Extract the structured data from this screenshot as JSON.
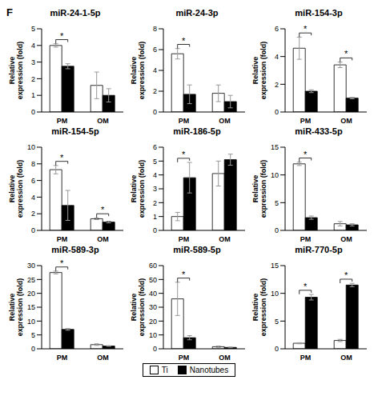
{
  "panel_label": "F",
  "chart_data": [
    {
      "type": "bar",
      "title": "miR-24-1-5p",
      "y_label": "Relative expression (fold)",
      "categories": [
        "PM",
        "OM"
      ],
      "series": [
        {
          "name": "Ti",
          "color": "#ffffff",
          "values": [
            4.0,
            1.6
          ],
          "errors": [
            0.1,
            0.8
          ]
        },
        {
          "name": "Nanotubes",
          "color": "#000000",
          "values": [
            2.75,
            1.0
          ],
          "errors": [
            0.15,
            0.4
          ]
        }
      ],
      "ylim": [
        0,
        5
      ],
      "yticks": [
        0,
        1,
        2,
        3,
        4,
        5
      ],
      "annotations": [
        {
          "category": "PM",
          "text": "*"
        }
      ]
    },
    {
      "type": "bar",
      "title": "miR-24-3p",
      "y_label": "Relative expression (fold)",
      "categories": [
        "PM",
        "OM"
      ],
      "series": [
        {
          "name": "Ti",
          "color": "#ffffff",
          "values": [
            5.6,
            1.8
          ],
          "errors": [
            0.5,
            0.8
          ]
        },
        {
          "name": "Nanotubes",
          "color": "#000000",
          "values": [
            1.7,
            1.0
          ],
          "errors": [
            0.9,
            0.6
          ]
        }
      ],
      "ylim": [
        0,
        8
      ],
      "yticks": [
        0,
        2,
        4,
        6,
        8
      ],
      "annotations": [
        {
          "category": "PM",
          "text": "*"
        }
      ]
    },
    {
      "type": "bar",
      "title": "miR-154-3p",
      "y_label": "Relative expression (fold)",
      "categories": [
        "PM",
        "OM"
      ],
      "series": [
        {
          "name": "Ti",
          "color": "#ffffff",
          "values": [
            4.6,
            3.4
          ],
          "errors": [
            0.8,
            0.2
          ]
        },
        {
          "name": "Nanotubes",
          "color": "#000000",
          "values": [
            1.5,
            1.0
          ],
          "errors": [
            0.1,
            0.05
          ]
        }
      ],
      "ylim": [
        0,
        6
      ],
      "yticks": [
        0,
        2,
        4,
        6
      ],
      "annotations": [
        {
          "category": "PM",
          "text": "*"
        },
        {
          "category": "OM",
          "text": "*"
        }
      ]
    },
    {
      "type": "bar",
      "title": "miR-154-5p",
      "y_label": "Relative expression (fold)",
      "categories": [
        "PM",
        "OM"
      ],
      "series": [
        {
          "name": "Ti",
          "color": "#ffffff",
          "values": [
            7.3,
            1.4
          ],
          "errors": [
            0.5,
            0.1
          ]
        },
        {
          "name": "Nanotubes",
          "color": "#000000",
          "values": [
            3.0,
            1.0
          ],
          "errors": [
            1.8,
            0.1
          ]
        }
      ],
      "ylim": [
        0,
        10
      ],
      "yticks": [
        0,
        2,
        4,
        6,
        8,
        10
      ],
      "annotations": [
        {
          "category": "PM",
          "text": "*"
        },
        {
          "category": "OM",
          "text": "*"
        }
      ]
    },
    {
      "type": "bar",
      "title": "miR-186-5p",
      "y_label": "Relative expression (fold)",
      "categories": [
        "PM",
        "OM"
      ],
      "series": [
        {
          "name": "Ti",
          "color": "#ffffff",
          "values": [
            1.0,
            4.1
          ],
          "errors": [
            0.3,
            0.9
          ]
        },
        {
          "name": "Nanotubes",
          "color": "#000000",
          "values": [
            3.8,
            5.1
          ],
          "errors": [
            1.1,
            0.4
          ]
        }
      ],
      "ylim": [
        0,
        6
      ],
      "yticks": [
        0,
        1,
        2,
        3,
        4,
        5,
        6
      ],
      "annotations": [
        {
          "category": "PM",
          "text": "*"
        }
      ]
    },
    {
      "type": "bar",
      "title": "miR-433-5p",
      "y_label": "Relative expression (fold)",
      "categories": [
        "PM",
        "OM"
      ],
      "series": [
        {
          "name": "Ti",
          "color": "#ffffff",
          "values": [
            12.0,
            1.2
          ],
          "errors": [
            0.3,
            0.4
          ]
        },
        {
          "name": "Nanotubes",
          "color": "#000000",
          "values": [
            2.3,
            1.0
          ],
          "errors": [
            0.3,
            0.2
          ]
        }
      ],
      "ylim": [
        0,
        15
      ],
      "yticks": [
        0,
        5,
        10,
        15
      ],
      "annotations": [
        {
          "category": "PM",
          "text": "*"
        }
      ]
    },
    {
      "type": "bar",
      "title": "miR-589-3p",
      "y_label": "Relative expression (fold)",
      "categories": [
        "PM",
        "OM"
      ],
      "series": [
        {
          "name": "Ti",
          "color": "#ffffff",
          "values": [
            27.5,
            1.5
          ],
          "errors": [
            0.5,
            0.3
          ]
        },
        {
          "name": "Nanotubes",
          "color": "#000000",
          "values": [
            7.0,
            1.0
          ],
          "errors": [
            0.3,
            0.1
          ]
        }
      ],
      "ylim": [
        0,
        30
      ],
      "yticks": [
        0,
        5,
        10,
        15,
        20,
        25,
        30
      ],
      "annotations": [
        {
          "category": "PM",
          "text": "*"
        }
      ]
    },
    {
      "type": "bar",
      "title": "miR-589-5p",
      "y_label": "Relative expression (fold)",
      "categories": [
        "PM",
        "OM"
      ],
      "series": [
        {
          "name": "Ti",
          "color": "#ffffff",
          "values": [
            36.0,
            1.5
          ],
          "errors": [
            12.0,
            0.5
          ]
        },
        {
          "name": "Nanotubes",
          "color": "#000000",
          "values": [
            8.0,
            1.0
          ],
          "errors": [
            1.5,
            0.3
          ]
        }
      ],
      "ylim": [
        0,
        60
      ],
      "yticks": [
        0,
        10,
        20,
        30,
        40,
        50,
        60
      ],
      "annotations": [
        {
          "category": "PM",
          "text": "*"
        }
      ]
    },
    {
      "type": "bar",
      "title": "miR-770-5p",
      "y_label": "Relative expression (fold)",
      "categories": [
        "PM",
        "OM"
      ],
      "series": [
        {
          "name": "Ti",
          "color": "#ffffff",
          "values": [
            1.0,
            1.5
          ],
          "errors": [
            0.1,
            0.2
          ]
        },
        {
          "name": "Nanotubes",
          "color": "#000000",
          "values": [
            9.3,
            11.5
          ],
          "errors": [
            0.5,
            0.3
          ]
        }
      ],
      "ylim": [
        0,
        15
      ],
      "yticks": [
        0,
        5,
        10,
        15
      ],
      "annotations": [
        {
          "category": "PM",
          "text": "*"
        },
        {
          "category": "OM",
          "text": "*"
        }
      ],
      "legend": "bottom"
    }
  ]
}
